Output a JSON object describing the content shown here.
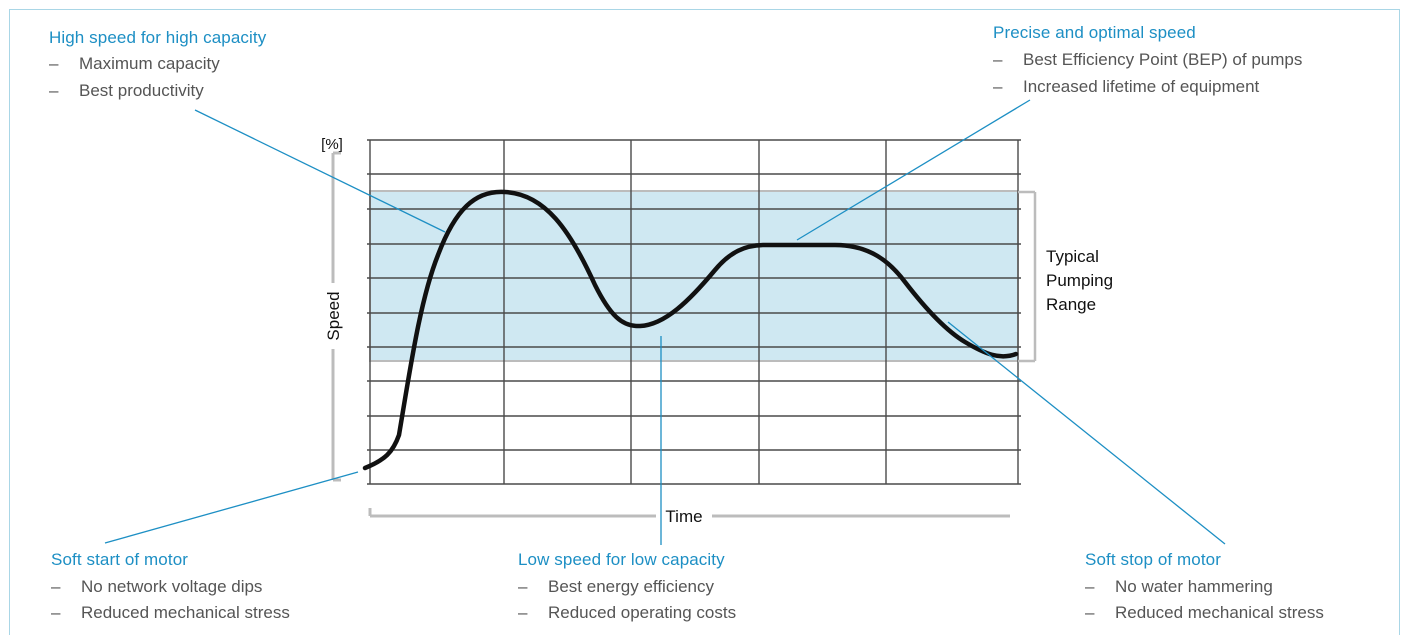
{
  "chart_data": {
    "type": "line",
    "ylabel": "Speed",
    "yunit": "[%]",
    "xlabel": "Time",
    "band_label": [
      "Typical",
      "Pumping",
      "Range"
    ],
    "grid": true,
    "band_color": "#cfe8f2",
    "line_color": "#111111",
    "accent_color": "#1d8fc4"
  },
  "callouts": {
    "high_speed": {
      "title": "High speed for high capacity",
      "items": [
        "Maximum capacity",
        "Best productivity"
      ]
    },
    "precise_speed": {
      "title": "Precise and optimal speed",
      "items": [
        "Best Efficiency Point (BEP) of pumps",
        "Increased lifetime of equipment"
      ]
    },
    "soft_start": {
      "title": "Soft start of motor",
      "items": [
        "No network voltage dips",
        "Reduced mechanical stress"
      ]
    },
    "low_speed": {
      "title": "Low speed for low capacity",
      "items": [
        "Best energy efficiency",
        "Reduced operating costs"
      ]
    },
    "soft_stop": {
      "title": "Soft stop of motor",
      "items": [
        "No water hammering",
        "Reduced mechanical stress"
      ]
    },
    "dash": "–"
  }
}
